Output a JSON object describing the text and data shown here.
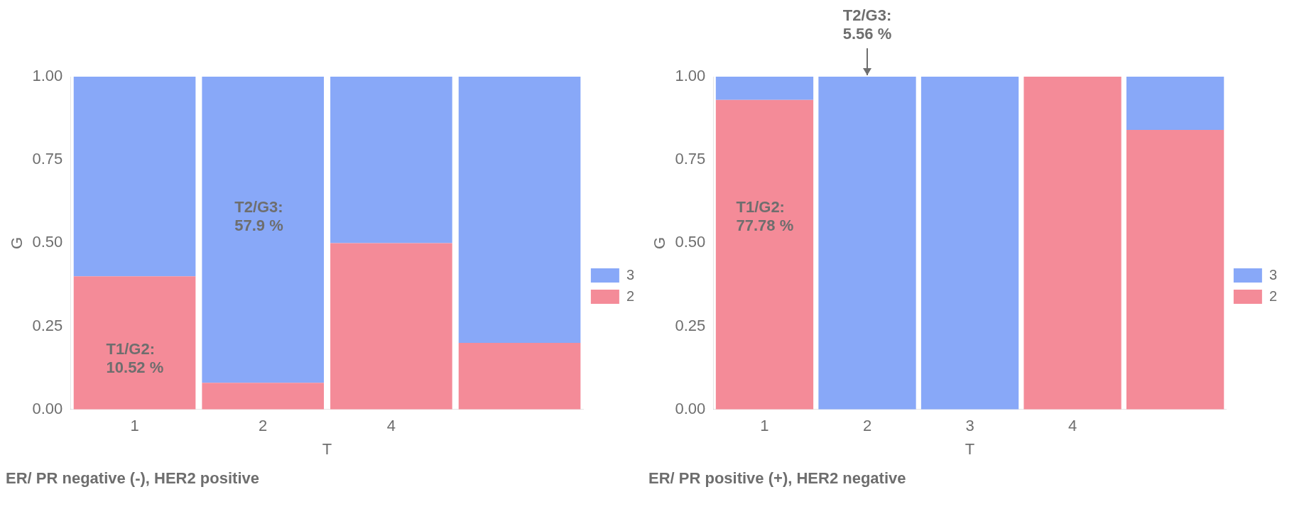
{
  "chart_data": [
    {
      "type": "bar",
      "title": "ER/ PR negative (-), HER2 positive",
      "xlabel": "T",
      "ylabel": "G",
      "categories": [
        "1",
        "2",
        "4",
        null
      ],
      "stacked": true,
      "ylim": [
        0,
        1
      ],
      "yticks": [
        {
          "value": 0,
          "label": "0.00"
        },
        {
          "value": 0.25,
          "label": "0.25"
        },
        {
          "value": 0.5,
          "label": "0.50"
        },
        {
          "value": 0.75,
          "label": "0.75"
        },
        {
          "value": 1,
          "label": "1.00"
        }
      ],
      "grid": false,
      "legend": "right",
      "series": [
        {
          "name": "2",
          "color": "#f48b98",
          "values": [
            0.4,
            0.08,
            0.5,
            0.2
          ]
        },
        {
          "name": "3",
          "color": "#88a8f8",
          "values": [
            0.6,
            0.92,
            0.5,
            0.8
          ]
        }
      ],
      "annotations": [
        "T1/G2:\n10.52 %",
        "T2/G3:\n57.9 %"
      ]
    },
    {
      "type": "bar",
      "title": "ER/ PR positive (+), HER2 negative",
      "xlabel": "T",
      "ylabel": "G",
      "categories": [
        "1",
        "2",
        "3",
        "4",
        null
      ],
      "stacked": true,
      "ylim": [
        0,
        1
      ],
      "yticks": [
        {
          "value": 0,
          "label": "0.00"
        },
        {
          "value": 0.25,
          "label": "0.25"
        },
        {
          "value": 0.5,
          "label": "0.50"
        },
        {
          "value": 0.75,
          "label": "0.75"
        },
        {
          "value": 1,
          "label": "1.00"
        }
      ],
      "grid": false,
      "legend": "right",
      "series": [
        {
          "name": "2",
          "color": "#f48b98",
          "values": [
            0.93,
            0,
            0,
            1,
            0.84
          ]
        },
        {
          "name": "3",
          "color": "#88a8f8",
          "values": [
            0.07,
            1,
            1,
            0,
            0.16
          ]
        }
      ],
      "annotations": [
        "T1/G2:\n77.78 %",
        {
          "text": "T2/G3:\n5.56 %",
          "x": "2",
          "y": 1
        }
      ]
    }
  ]
}
